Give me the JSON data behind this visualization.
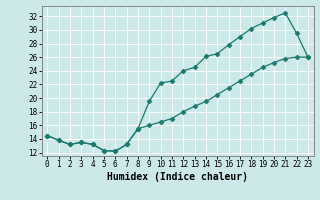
{
  "xlabel": "Humidex (Indice chaleur)",
  "ylabel": "",
  "bg_color": "#cce8e8",
  "line_color": "#1a7a6e",
  "grid_color": "#ffffff",
  "xlim": [
    -0.5,
    23.5
  ],
  "ylim": [
    11.5,
    33.5
  ],
  "xticks": [
    0,
    1,
    2,
    3,
    4,
    5,
    6,
    7,
    8,
    9,
    10,
    11,
    12,
    13,
    14,
    15,
    16,
    17,
    18,
    19,
    20,
    21,
    22,
    23
  ],
  "yticks": [
    12,
    14,
    16,
    18,
    20,
    22,
    24,
    26,
    28,
    30,
    32
  ],
  "curve1_x": [
    0,
    1,
    2,
    3,
    4,
    5,
    6,
    7,
    8,
    9,
    10,
    11,
    12,
    13,
    14,
    15,
    16,
    17,
    18,
    19,
    20,
    21,
    22,
    23
  ],
  "curve1_y": [
    14.5,
    13.8,
    13.2,
    13.5,
    13.2,
    12.3,
    12.2,
    13.2,
    15.5,
    19.5,
    22.2,
    22.5,
    24.0,
    24.5,
    26.1,
    26.5,
    27.8,
    29.0,
    30.2,
    31.0,
    31.8,
    32.5,
    29.5,
    26.0
  ],
  "curve2_x": [
    0,
    1,
    2,
    3,
    4,
    5,
    6,
    7,
    8,
    9,
    10,
    11,
    12,
    13,
    14,
    15,
    16,
    17,
    18,
    19,
    20,
    21,
    22,
    23
  ],
  "curve2_y": [
    14.5,
    13.8,
    13.2,
    13.5,
    13.2,
    12.3,
    12.2,
    13.2,
    15.5,
    16.0,
    16.5,
    17.0,
    18.0,
    18.8,
    19.5,
    20.5,
    21.5,
    22.5,
    23.5,
    24.5,
    25.2,
    25.8,
    26.0,
    26.0
  ],
  "marker": "D",
  "markersize": 2.5,
  "linewidth": 0.9,
  "xlabel_fontsize": 7,
  "tick_fontsize": 5.5
}
